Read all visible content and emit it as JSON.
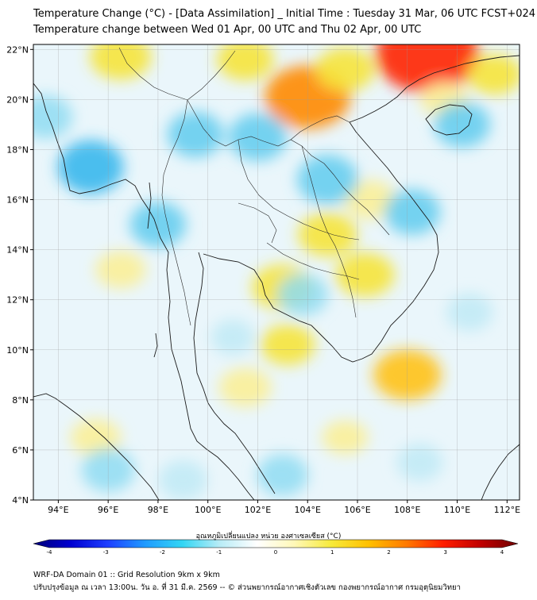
{
  "title_line1": "Temperature Change (°C) - [Data Assimilation] _ Initial Time : Tuesday 31 Mar, 06 UTC FCST+024",
  "title_line2": "Temperature change between Wed 01 Apr, 00 UTC and Thu 02 Apr, 00 UTC",
  "map": {
    "lon_range": [
      93,
      112.5
    ],
    "lat_range": [
      4,
      22.2
    ],
    "lat_ticks": [
      {
        "value": 4,
        "label": "4°N"
      },
      {
        "value": 6,
        "label": "6°N"
      },
      {
        "value": 8,
        "label": "8°N"
      },
      {
        "value": 10,
        "label": "10°N"
      },
      {
        "value": 12,
        "label": "12°N"
      },
      {
        "value": 14,
        "label": "14°N"
      },
      {
        "value": 16,
        "label": "16°N"
      },
      {
        "value": 18,
        "label": "18°N"
      },
      {
        "value": 20,
        "label": "20°N"
      },
      {
        "value": 22,
        "label": "22°N"
      }
    ],
    "lon_ticks": [
      {
        "value": 94,
        "label": "94°E"
      },
      {
        "value": 96,
        "label": "96°E"
      },
      {
        "value": 98,
        "label": "98°E"
      },
      {
        "value": 100,
        "label": "100°E"
      },
      {
        "value": 102,
        "label": "102°E"
      },
      {
        "value": 104,
        "label": "104°E"
      },
      {
        "value": 106,
        "label": "106°E"
      },
      {
        "value": 108,
        "label": "108°E"
      },
      {
        "value": 110,
        "label": "110°E"
      },
      {
        "value": 112,
        "label": "112°E"
      }
    ],
    "grid": true,
    "background_color": "#eaf6fb",
    "warm_anomalies": [
      {
        "lon": 108.8,
        "lat": 21.8,
        "value": 3.2
      },
      {
        "lon": 104.0,
        "lat": 20.1,
        "value": 2.4
      },
      {
        "lon": 96.5,
        "lat": 21.7,
        "value": 1.3
      },
      {
        "lon": 101.5,
        "lat": 21.6,
        "value": 1.1
      },
      {
        "lon": 105.5,
        "lat": 21.2,
        "value": 1.2
      },
      {
        "lon": 111.5,
        "lat": 21.0,
        "value": 1.0
      },
      {
        "lon": 104.8,
        "lat": 14.6,
        "value": 1.2
      },
      {
        "lon": 103.0,
        "lat": 12.5,
        "value": 1.3
      },
      {
        "lon": 106.3,
        "lat": 13.0,
        "value": 1.2
      },
      {
        "lon": 108.0,
        "lat": 9.0,
        "value": 1.6
      },
      {
        "lon": 103.2,
        "lat": 10.2,
        "value": 1.0
      },
      {
        "lon": 96.5,
        "lat": 13.2,
        "value": 0.8
      },
      {
        "lon": 95.5,
        "lat": 6.5,
        "value": 0.8
      },
      {
        "lon": 101.5,
        "lat": 8.5,
        "value": 0.9
      },
      {
        "lon": 105.5,
        "lat": 6.5,
        "value": 0.6
      },
      {
        "lon": 106.5,
        "lat": 16.0,
        "value": 0.9
      },
      {
        "lon": 109.5,
        "lat": 20.0,
        "value": 0.7
      }
    ],
    "cool_anomalies": [
      {
        "lon": 95.3,
        "lat": 17.3,
        "value": -1.4
      },
      {
        "lon": 93.5,
        "lat": 19.3,
        "value": -0.9
      },
      {
        "lon": 99.5,
        "lat": 18.6,
        "value": -1.0
      },
      {
        "lon": 102.0,
        "lat": 18.5,
        "value": -1.1
      },
      {
        "lon": 104.8,
        "lat": 16.8,
        "value": -1.2
      },
      {
        "lon": 108.2,
        "lat": 15.5,
        "value": -1.0
      },
      {
        "lon": 110.2,
        "lat": 19.0,
        "value": -1.0
      },
      {
        "lon": 98.0,
        "lat": 15.0,
        "value": -1.0
      },
      {
        "lon": 103.8,
        "lat": 12.2,
        "value": -0.8
      },
      {
        "lon": 110.5,
        "lat": 11.5,
        "value": -0.6
      },
      {
        "lon": 96.0,
        "lat": 5.2,
        "value": -0.9
      },
      {
        "lon": 99.0,
        "lat": 4.8,
        "value": -0.7
      },
      {
        "lon": 103.0,
        "lat": 5.0,
        "value": -0.8
      },
      {
        "lon": 108.5,
        "lat": 5.5,
        "value": -0.6
      },
      {
        "lon": 101.0,
        "lat": 10.5,
        "value": -0.5
      }
    ]
  },
  "colorbar": {
    "label": "อุณหภูมิเปลี่ยนแปลง หน่วย องศาเซลเซียส (°C)",
    "min": -4,
    "max": 4,
    "ticks": [
      {
        "value": -4,
        "label": "-4"
      },
      {
        "value": -3,
        "label": "-3"
      },
      {
        "value": -2,
        "label": "-2"
      },
      {
        "value": -1,
        "label": "-1"
      },
      {
        "value": 0,
        "label": "0"
      },
      {
        "value": 1,
        "label": "1"
      },
      {
        "value": 2,
        "label": "2"
      },
      {
        "value": 3,
        "label": "3"
      },
      {
        "value": 4,
        "label": "4"
      }
    ],
    "colors": [
      "#00007a",
      "#0000d0",
      "#1e3fff",
      "#1f9bff",
      "#33d6f4",
      "#b8ecf6",
      "#ffffff",
      "#fff8b8",
      "#f7ea3a",
      "#ffc000",
      "#ff7a00",
      "#ff1e00",
      "#c00000",
      "#6e0000"
    ]
  },
  "footer_line1": "WRF-DA Domain 01 :: Grid Resolution 9km x 9km",
  "footer_line2": "ปรับปรุงข้อมูล ณ เวลา 13:00น. วัน อ. ที่ 31 มี.ค. 2569 -- © ส่วนพยากรณ์อากาศเชิงตัวเลข กองพยากรณ์อากาศ กรมอุตุนิยมวิทยา"
}
